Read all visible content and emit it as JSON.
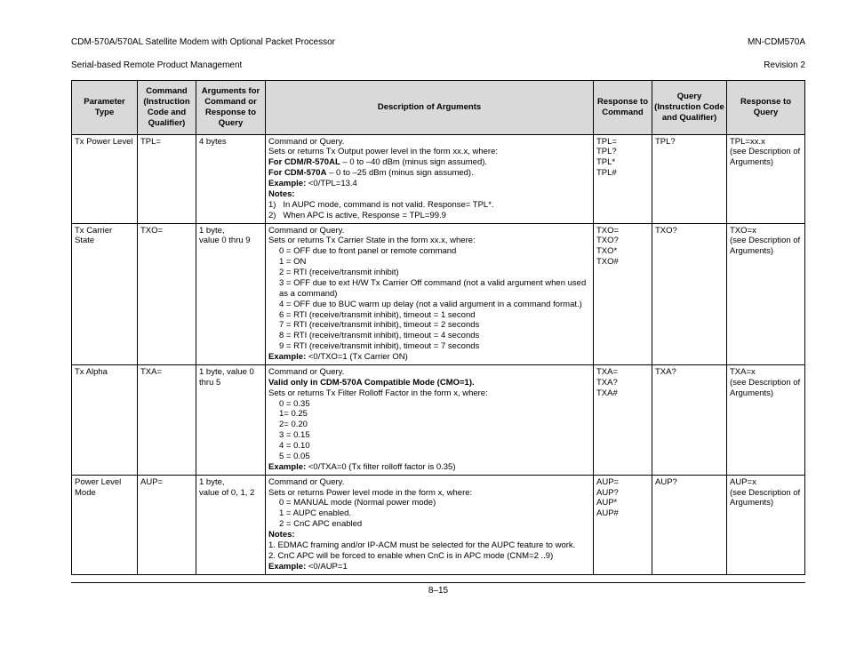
{
  "header": {
    "left_line1": "CDM-570A/570AL Satellite Modem with Optional Packet Processor",
    "left_line2": "Serial-based Remote Product Management",
    "right_line1": "MN-CDM570A",
    "right_line2": "Revision 2"
  },
  "columns": {
    "c1": "Parameter Type",
    "c2": "Command (Instruction Code and Qualifier)",
    "c3": "Arguments for Command or Response to Query",
    "c4": "Description of Arguments",
    "c5": "Response to Command",
    "c6": "Query (Instruction Code and Qualifier)",
    "c7": "Response to Query"
  },
  "rows": [
    {
      "param": "Tx Power Level",
      "cmd": "TPL=",
      "args": "4 bytes",
      "desc_html": "Command or Query.<br>Sets or returns Tx Output power level in the form xx.x, where:<br><span class='b'>For CDM/R-570AL</span> – 0 to –40 dBm (minus sign assumed).<br><span class='b'>For CDM-570A</span> – 0 to –25 dBm (minus sign assumed).<br><span class='b'>Example:</span> &lt;0/TPL=13.4<br><span class='b'>Notes:</span><br>1)&nbsp;&nbsp;&nbsp;In AUPC mode, command is not valid. Response= TPL*.<br>2)&nbsp;&nbsp;&nbsp;When APC is active, Response = TPL=99.9",
      "resp_cmd": "TPL=\nTPL?\nTPL*\nTPL#",
      "query": "TPL?",
      "resp_q": "TPL=xx.x\n(see Description of Arguments)"
    },
    {
      "param": "Tx Carrier State",
      "cmd": "TXO=",
      "args": "1 byte,\nvalue 0 thru 9",
      "desc_html": "Command or Query.<br>Sets or returns Tx Carrier State in the form xx.x, where:<br><span class='indent'>0 = OFF due to front panel or remote command</span><span class='indent'>1 = ON</span><span class='indent'>2 = RTI (receive/transmit inhibit)</span><span class='indent'>3 = OFF due to ext H/W Tx Carrier Off command (not a valid argument when used as a command)</span><span class='indent'>4 = OFF due to BUC warm up delay (not a valid argument in a command format.)</span><span class='indent'>6 = RTI (receive/transmit inhibit), timeout = 1 second</span><span class='indent'>7 = RTI (receive/transmit inhibit), timeout = 2 seconds</span><span class='indent'>8 = RTI (receive/transmit inhibit), timeout = 4 seconds</span><span class='indent'>9 = RTI (receive/transmit inhibit), timeout = 7 seconds</span><span class='b'>Example:</span> &lt;0/TXO=1 (Tx Carrier ON)",
      "resp_cmd": "TXO=\nTXO?\nTXO*\nTXO#",
      "query": "TXO?",
      "resp_q": "TXO=x\n(see Description of Arguments)"
    },
    {
      "param": "Tx Alpha",
      "cmd": "TXA=",
      "args": "1 byte, value 0 thru 5",
      "desc_html": "Command or Query.<br><span class='b'>Valid only in CDM-570A Compatible Mode (CMO=1).</span><br>Sets or returns Tx Filter Rolloff Factor in the form x, where:<br><span class='indent'>0 = 0.35</span><span class='indent'>1= 0.25</span><span class='indent'>2= 0.20</span><span class='indent'>3 = 0.15</span><span class='indent'>4 = 0.10</span><span class='indent'>5 = 0.05</span><span class='b'>Example:</span> &lt;0/TXA=0 (Tx filter rolloff factor is 0.35)",
      "resp_cmd": "TXA=\nTXA?\nTXA#",
      "query": "TXA?",
      "resp_q": "TXA=x\n(see Description of Arguments)"
    },
    {
      "param": "Power Level Mode",
      "cmd": "AUP=",
      "args": "1 byte,\nvalue of 0,  1, 2",
      "desc_html": "Command or Query.<br>Sets or returns Power level mode in the form x, where:<br><span class='indent'>0 = MANUAL mode (Normal power mode)</span><span class='indent'>1 = AUPC enabled.</span><span class='indent'>2 = CnC APC enabled</span><span class='b'>Notes:</span><br>1. EDMAC framing and/or IP-ACM must be selected for the AUPC feature to work.<br>2. CnC APC will be forced to enable when CnC is in APC mode (CNM=2 ..9)<br><span class='b'>Example:</span> &lt;0/AUP=1",
      "resp_cmd": "AUP=\nAUP?\nAUP*\nAUP#",
      "query": "AUP?",
      "resp_q": "AUP=x\n(see Description of Arguments)"
    }
  ],
  "footer": "8–15"
}
